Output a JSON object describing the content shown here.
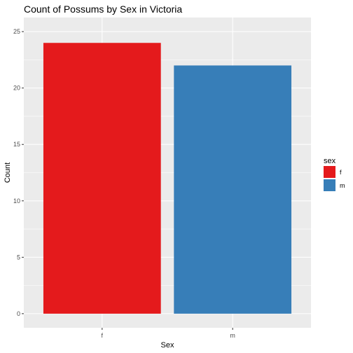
{
  "chart_data": {
    "type": "bar",
    "title": "Count of Possums by Sex in Victoria",
    "xlabel": "Sex",
    "ylabel": "Count",
    "categories": [
      "f",
      "m"
    ],
    "values": [
      24,
      22
    ],
    "ylim": [
      0,
      25
    ],
    "yticks": [
      0,
      5,
      10,
      15,
      20,
      25
    ],
    "grid": true,
    "legend": {
      "title": "sex",
      "placement": "right",
      "entries": [
        "f",
        "m"
      ]
    },
    "colors": {
      "f": "#E41A1C",
      "m": "#377EB8",
      "panel": "#EBEBEB",
      "grid": "#FFFFFF"
    }
  }
}
